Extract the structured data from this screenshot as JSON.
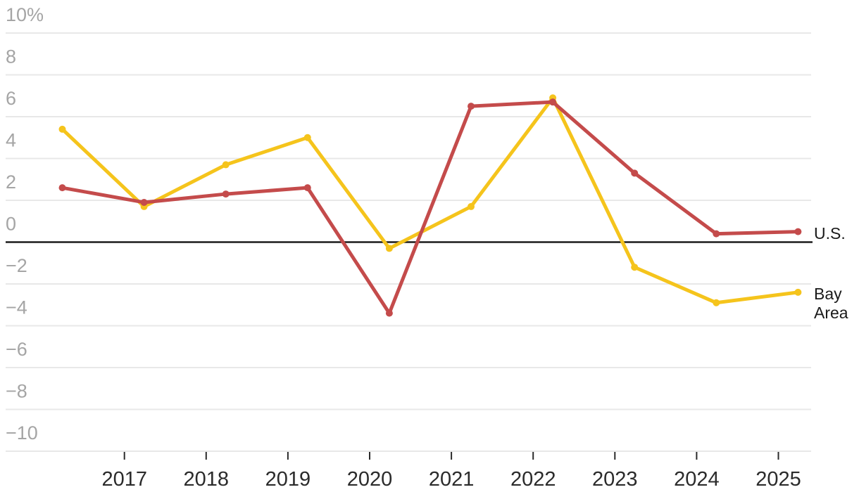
{
  "chart_data": {
    "type": "line",
    "x": [
      2016,
      2017,
      2018,
      2019,
      2020,
      2021,
      2022,
      2023,
      2024,
      2025
    ],
    "series": [
      {
        "name": "Bay Area",
        "color": "#f5c41c",
        "values": [
          5.4,
          1.7,
          3.7,
          5.0,
          -0.3,
          1.7,
          6.9,
          -1.2,
          -2.9,
          -2.4
        ]
      },
      {
        "name": "U.S.",
        "color": "#c44b4b",
        "values": [
          2.6,
          1.9,
          2.3,
          2.6,
          -3.4,
          6.5,
          6.7,
          3.3,
          0.4,
          0.5
        ]
      }
    ],
    "y_axis": {
      "tick_values": [
        10,
        8,
        6,
        4,
        2,
        0,
        -2,
        -4,
        -6,
        -8,
        -10
      ],
      "tick_labels": [
        "10%",
        "8",
        "6",
        "4",
        "2",
        "0",
        "−2",
        "−4",
        "−6",
        "−8",
        "−10"
      ],
      "ylim": [
        -10,
        10
      ],
      "zero_line": true
    },
    "x_axis": {
      "tick_labels": [
        "2017",
        "2018",
        "2019",
        "2020",
        "2021",
        "2022",
        "2023",
        "2024",
        "2025"
      ],
      "tick_years": [
        2017,
        2018,
        2019,
        2020,
        2021,
        2022,
        2023,
        2024,
        2025
      ]
    },
    "title": "",
    "xlabel": "",
    "ylabel": "",
    "grid": true,
    "legend_position": "right-end-labels",
    "colors": {
      "grid": "#e8e8e8",
      "zero_line": "#1c1c1c",
      "y_label": "#a5a5a5",
      "x_label": "#2b2b2b",
      "tick_mark": "#2b2b2b",
      "background": "#ffffff",
      "series_label_text": "#1a1a1a"
    }
  }
}
